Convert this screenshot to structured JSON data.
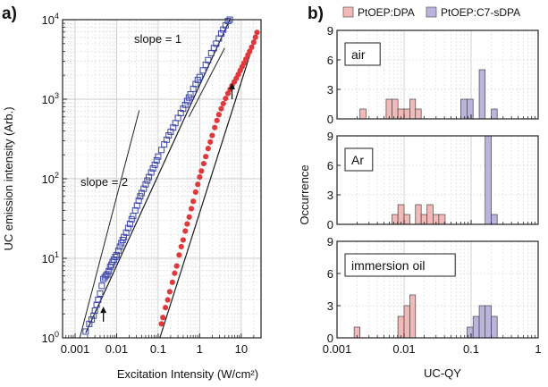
{
  "chart_data": [
    {
      "panel": "a)",
      "type": "scatter",
      "xlabel": "Excitation Intensity (W/cm²)",
      "ylabel": "UC emission intensity (Arb.)",
      "xscale": "log",
      "yscale": "log",
      "xlim": [
        0.0005,
        30
      ],
      "ylim": [
        1,
        10000
      ],
      "x_ticks": [
        "0.001",
        "0.01",
        "0.1",
        "1",
        "10"
      ],
      "y_ticks": [
        "10^0",
        "10^1",
        "10^2",
        "10^3",
        "10^4"
      ],
      "grid": true,
      "annotations": [
        "slope = 1",
        "slope = 2"
      ],
      "guide_lines": [
        {
          "label": "slope = 1",
          "x": [
            0.55,
            4.0
          ],
          "y": [
            600,
            4400
          ]
        },
        {
          "label": "slope = 2",
          "x": [
            0.0013,
            0.035
          ],
          "y": [
            1,
            725
          ]
        }
      ],
      "arrows": [
        {
          "x": 0.0048,
          "y_from": 1.6,
          "y_to": 2.4
        },
        {
          "x": 6.0,
          "y_from": 1000,
          "y_to": 1550
        }
      ],
      "series": [
        {
          "marker": "open-square",
          "color": "#3a44a8",
          "x": [
            0.0018,
            0.0022,
            0.0025,
            0.0028,
            0.003,
            0.0033,
            0.0036,
            0.004,
            0.0044,
            0.0048,
            0.0052,
            0.0056,
            0.006,
            0.0065,
            0.007,
            0.0075,
            0.008,
            0.0086,
            0.0093,
            0.01,
            0.011,
            0.012,
            0.013,
            0.014,
            0.015,
            0.017,
            0.019,
            0.021,
            0.023,
            0.025,
            0.028,
            0.031,
            0.034,
            0.037,
            0.04,
            0.045,
            0.05,
            0.055,
            0.06,
            0.068,
            0.075,
            0.083,
            0.092,
            0.1,
            0.12,
            0.14,
            0.16,
            0.18,
            0.2,
            0.23,
            0.26,
            0.3,
            0.35,
            0.4,
            0.45,
            0.5,
            0.55,
            0.6,
            0.7,
            0.8,
            0.9,
            1.0,
            1.2,
            1.4,
            1.6,
            1.9,
            2.2,
            2.5,
            2.9,
            3.3,
            3.7,
            4.2,
            4.8,
            5.3
          ],
          "y": [
            1.2,
            1.5,
            1.7,
            1.9,
            2.2,
            2.6,
            3.0,
            3.6,
            4.5,
            5.5,
            5.8,
            6.1,
            6.3,
            6.9,
            7.8,
            8.3,
            9.0,
            9.6,
            10.4,
            11.0,
            12.5,
            14.0,
            15.5,
            17.0,
            18.5,
            21.0,
            24.0,
            27.0,
            31.0,
            34.0,
            40.0,
            46.0,
            53.0,
            60.0,
            66.0,
            75.0,
            85.0,
            95.0,
            105.0,
            120.0,
            135.0,
            150.0,
            170.0,
            190.0,
            230.0,
            270.0,
            310.0,
            350.0,
            390.0,
            440.0,
            500.0,
            580.0,
            670.0,
            760.0,
            850.0,
            950.0,
            1050.0,
            1150.0,
            1350.0,
            1550.0,
            1750.0,
            1900.0,
            2300.0,
            2700.0,
            3100.0,
            3800.0,
            4400.0,
            5000.0,
            5800.0,
            6700.0,
            7500.0,
            8500.0,
            9600.0,
            10000.0
          ]
        },
        {
          "marker": "filled-circle",
          "color": "#e0393b",
          "x": [
            0.12,
            0.13,
            0.15,
            0.17,
            0.19,
            0.22,
            0.25,
            0.28,
            0.32,
            0.36,
            0.4,
            0.45,
            0.5,
            0.56,
            0.63,
            0.7,
            0.8,
            0.9,
            1.0,
            1.1,
            1.25,
            1.4,
            1.6,
            1.8,
            2.0,
            2.3,
            2.6,
            2.9,
            3.3,
            3.7,
            4.2,
            4.8,
            5.4,
            6.0,
            6.8,
            7.6,
            8.5,
            9.5,
            10.5,
            11.7,
            13.0,
            14.5,
            16.0,
            17.8,
            20.0,
            22.0,
            24.0
          ],
          "y": [
            1.5,
            1.8,
            2.4,
            3.0,
            3.8,
            5.0,
            6.5,
            8.0,
            11.0,
            14.0,
            17.0,
            22.0,
            27.0,
            33.0,
            42.0,
            52.0,
            68.0,
            85.0,
            105.0,
            125.0,
            155.0,
            190.0,
            240.0,
            290.0,
            350.0,
            440.0,
            540.0,
            640.0,
            760.0,
            880.0,
            1020.0,
            1180.0,
            1330.0,
            1480.0,
            1650.0,
            1830.0,
            2050.0,
            2300.0,
            2550.0,
            2850.0,
            3200.0,
            3600.0,
            4000.0,
            4500.0,
            5200.0,
            6000.0,
            6900.0
          ]
        }
      ],
      "fit_lines": [
        {
          "color": "#1a1a1a",
          "x": [
            0.0018,
            5.3
          ],
          "y": [
            1.15,
            10000
          ]
        },
        {
          "color": "#1a1a1a",
          "x": [
            0.11,
            24
          ],
          "y": [
            1.0,
            6900
          ]
        }
      ]
    },
    {
      "panel": "b)",
      "type": "histogram",
      "xlabel": "UC-QY",
      "ylabel": "Occurrence",
      "xscale": "log",
      "xlim": [
        0.001,
        1
      ],
      "x_ticks": [
        "0.001",
        "0.01",
        "0.1",
        "1"
      ],
      "ylim": [
        0,
        9
      ],
      "y_ticks": [
        "0",
        "3",
        "6",
        "9"
      ],
      "grid": true,
      "legend": {
        "placement": "top",
        "entries": [
          {
            "label": "PtOEP:DPA",
            "color": "#f3b9b8"
          },
          {
            "label": "PtOEP:C7-sDPA",
            "color": "#b9b5dc"
          }
        ]
      },
      "subplots": [
        {
          "condition": "air",
          "series": [
            {
              "name": "PtOEP:DPA",
              "bins": [
                [
                  0.0022,
                  0.0027
                ],
                [
                  0.0044,
                  0.0054
                ],
                [
                  0.0054,
                  0.0066
                ],
                [
                  0.0066,
                  0.0081
                ],
                [
                  0.0081,
                  0.01
                ],
                [
                  0.01,
                  0.0122
                ],
                [
                  0.0122,
                  0.0148
                ],
                [
                  0.0148,
                  0.018
                ],
                [
                  0.018,
                  0.022
                ]
              ],
              "counts": [
                1,
                0,
                2,
                2,
                1,
                1,
                2,
                1,
                0
              ]
            },
            {
              "name": "PtOEP:C7-sDPA",
              "bins": [
                [
                  0.07,
                  0.087
                ],
                [
                  0.087,
                  0.107
                ],
                [
                  0.107,
                  0.132
                ],
                [
                  0.132,
                  0.162
                ],
                [
                  0.162,
                  0.2
                ],
                [
                  0.2,
                  0.245
                ],
                [
                  0.245,
                  0.3
                ]
              ],
              "counts": [
                2,
                2,
                0,
                5,
                0,
                1,
                0
              ]
            }
          ]
        },
        {
          "condition": "Ar",
          "series": [
            {
              "name": "PtOEP:DPA",
              "bins": [
                [
                  0.0066,
                  0.0081
                ],
                [
                  0.0081,
                  0.01
                ],
                [
                  0.01,
                  0.0122
                ],
                [
                  0.0148,
                  0.018
                ],
                [
                  0.018,
                  0.022
                ],
                [
                  0.022,
                  0.027
                ],
                [
                  0.027,
                  0.033
                ],
                [
                  0.033,
                  0.041
                ],
                [
                  0.041,
                  0.05
                ]
              ],
              "counts": [
                1,
                2,
                1,
                2,
                1,
                2,
                1,
                1,
                0
              ]
            },
            {
              "name": "PtOEP:C7-sDPA",
              "bins": [
                [
                  0.162,
                  0.2
                ],
                [
                  0.2,
                  0.245
                ],
                [
                  0.245,
                  0.3
                ]
              ],
              "counts": [
                9,
                1,
                0
              ]
            }
          ]
        },
        {
          "condition": "immersion oil",
          "series": [
            {
              "name": "PtOEP:DPA",
              "bins": [
                [
                  0.0018,
                  0.0022
                ],
                [
                  0.0054,
                  0.0066
                ],
                [
                  0.0081,
                  0.01
                ],
                [
                  0.01,
                  0.0122
                ],
                [
                  0.0122,
                  0.0148
                ]
              ],
              "counts": [
                1,
                0,
                2,
                3,
                4
              ]
            },
            {
              "name": "PtOEP:C7-sDPA",
              "bins": [
                [
                  0.087,
                  0.107
                ],
                [
                  0.107,
                  0.132
                ],
                [
                  0.132,
                  0.162
                ],
                [
                  0.162,
                  0.2
                ],
                [
                  0.2,
                  0.245
                ]
              ],
              "counts": [
                1,
                2,
                3,
                3,
                2
              ]
            }
          ]
        }
      ]
    }
  ]
}
